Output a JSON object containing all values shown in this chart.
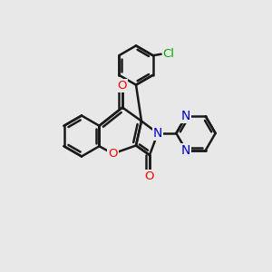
{
  "bg_color": "#e8e8e8",
  "bond_color": "#1a1a1a",
  "bond_width": 1.8,
  "atom_colors": {
    "O": "#ff0000",
    "N": "#0000cc",
    "Cl": "#00aa00",
    "C": "#1a1a1a"
  },
  "font_size": 9.5,
  "figsize": [
    3.0,
    3.0
  ],
  "xlim": [
    0,
    10
  ],
  "ylim": [
    0,
    10
  ]
}
